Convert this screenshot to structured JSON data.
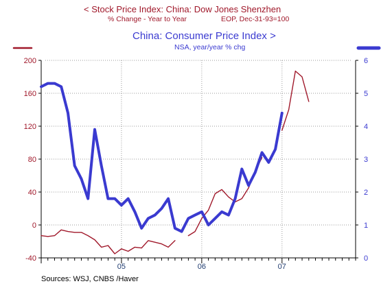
{
  "header": {
    "left_title": "<  Stock Price Index: China: Dow Jones Shenzhen",
    "left_sub_a": "% Change - Year to Year",
    "left_sub_b": "EOP, Dec-31-93=100",
    "right_title": "China: Consumer Price Index  >",
    "right_sub": "NSA, year/year % chg"
  },
  "source": "Sources:  WSJ, CNBS /Haver",
  "chart_data": {
    "type": "line",
    "x_ticks": [
      "05",
      "06",
      "07"
    ],
    "x_range": [
      "2004-01",
      "2007-12"
    ],
    "left_axis": {
      "ticks": [
        "200",
        "160",
        "120",
        "80",
        "40",
        "0",
        "-40"
      ],
      "ylim": [
        -40,
        200
      ],
      "color": "#a0182a"
    },
    "right_axis": {
      "ticks": [
        "6",
        "5",
        "4",
        "3",
        "2",
        "1",
        "0"
      ],
      "ylim": [
        0,
        6
      ],
      "color": "#3a3ad0"
    },
    "grid": true,
    "series": [
      {
        "axis": "left",
        "color": "#a0182a",
        "segments": [
          [
            [
              "2004-01",
              -13
            ],
            [
              "2004-02",
              -14
            ],
            [
              "2004-03",
              -13
            ],
            [
              "2004-04",
              -6
            ],
            [
              "2004-05",
              -8
            ],
            [
              "2004-06",
              -9
            ],
            [
              "2004-07",
              -9
            ],
            [
              "2004-08",
              -13
            ],
            [
              "2004-09",
              -18
            ],
            [
              "2004-10",
              -27
            ],
            [
              "2004-11",
              -25
            ],
            [
              "2004-12",
              -35
            ],
            [
              "2005-01",
              -29
            ],
            [
              "2005-02",
              -32
            ],
            [
              "2005-03",
              -27
            ],
            [
              "2005-04",
              -28
            ],
            [
              "2005-05",
              -19
            ],
            [
              "2005-06",
              -21
            ],
            [
              "2005-07",
              -23
            ],
            [
              "2005-08",
              -27
            ],
            [
              "2005-09",
              -19
            ]
          ],
          [
            [
              "2005-11",
              -13
            ],
            [
              "2005-12",
              -8
            ],
            [
              "2006-01",
              8
            ],
            [
              "2006-02",
              18
            ],
            [
              "2006-03",
              38
            ],
            [
              "2006-04",
              43
            ],
            [
              "2006-05",
              34
            ],
            [
              "2006-06",
              28
            ],
            [
              "2006-07",
              32
            ],
            [
              "2006-08",
              45
            ],
            [
              "2006-09",
              65
            ],
            [
              "2006-10",
              82
            ]
          ],
          [
            [
              "2007-01",
              115
            ],
            [
              "2007-02",
              140
            ],
            [
              "2007-03",
              187
            ],
            [
              "2007-04",
              180
            ],
            [
              "2007-05",
              150
            ]
          ]
        ]
      },
      {
        "axis": "right",
        "color": "#3a3ad0",
        "segments": [
          [
            [
              "2004-01",
              5.2
            ],
            [
              "2004-02",
              5.3
            ],
            [
              "2004-03",
              5.3
            ],
            [
              "2004-04",
              5.2
            ],
            [
              "2004-05",
              4.4
            ],
            [
              "2004-06",
              2.8
            ],
            [
              "2004-07",
              2.4
            ],
            [
              "2004-08",
              1.8
            ],
            [
              "2004-09",
              3.9
            ],
            [
              "2004-10",
              2.8
            ],
            [
              "2004-11",
              1.8
            ],
            [
              "2004-12",
              1.8
            ],
            [
              "2005-01",
              1.6
            ],
            [
              "2005-02",
              1.8
            ],
            [
              "2005-03",
              1.4
            ],
            [
              "2005-04",
              0.9
            ],
            [
              "2005-05",
              1.2
            ],
            [
              "2005-06",
              1.3
            ],
            [
              "2005-07",
              1.5
            ],
            [
              "2005-08",
              1.8
            ],
            [
              "2005-09",
              0.9
            ],
            [
              "2005-10",
              0.8
            ],
            [
              "2005-11",
              1.2
            ],
            [
              "2005-12",
              1.3
            ],
            [
              "2006-01",
              1.4
            ],
            [
              "2006-02",
              1.0
            ],
            [
              "2006-03",
              1.2
            ],
            [
              "2006-04",
              1.4
            ],
            [
              "2006-05",
              1.3
            ],
            [
              "2006-06",
              1.8
            ],
            [
              "2006-07",
              2.7
            ],
            [
              "2006-08",
              2.2
            ],
            [
              "2006-09",
              2.6
            ],
            [
              "2006-10",
              3.2
            ],
            [
              "2006-11",
              2.9
            ],
            [
              "2006-12",
              3.3
            ],
            [
              "2007-01",
              4.4
            ]
          ]
        ]
      }
    ],
    "edge_markers": [
      {
        "side": "left",
        "color": "#a0182a"
      },
      {
        "side": "right",
        "color": "#3a3ad0"
      }
    ]
  }
}
